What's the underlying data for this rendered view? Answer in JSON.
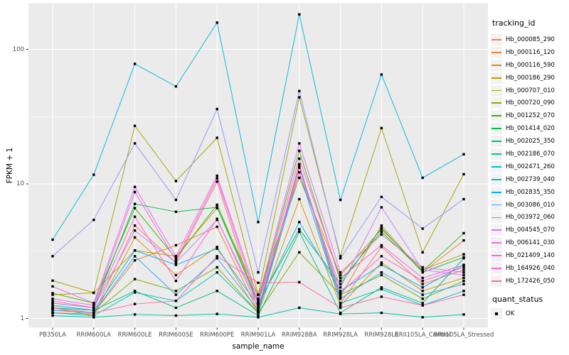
{
  "chart_data": {
    "type": "line",
    "title": "",
    "xlabel": "sample_name",
    "ylabel": "FPKM + 1",
    "y_scale": "log10",
    "y_ticks": [
      1,
      10,
      100
    ],
    "y_tick_labels": [
      "1",
      "10",
      "100"
    ],
    "y_minor_ticks": [
      3.162,
      31.623
    ],
    "ylim": [
      0.87,
      216
    ],
    "grid": true,
    "legend_position": "right",
    "panel_bg": "#EBEBEB",
    "grid_color": "#FFFFFF",
    "tick_color": "#333333",
    "axis_text_color": "#4D4D4D",
    "point_color": "#000000",
    "categories": [
      "PB350LA",
      "RRIM600LA",
      "RRIM600LE",
      "RRIM600SE",
      "RRIM600PE",
      "RRIM901LA",
      "RRIM928BA",
      "RRIM928LA",
      "RRIM928LE",
      "RRII105LA_Control",
      "RRII105LA_Stressed"
    ],
    "series": [
      {
        "name": "Hb_000085_290",
        "color": "#F8766D",
        "values": [
          1.1,
          1.08,
          4.9,
          2.6,
          10.4,
          1.15,
          14.0,
          1.3,
          3.4,
          1.8,
          2.3
        ]
      },
      {
        "name": "Hb_000116_120",
        "color": "#EA8331",
        "values": [
          1.15,
          1.1,
          2.7,
          3.5,
          4.8,
          1.12,
          13.2,
          1.45,
          4.9,
          2.2,
          3.8
        ]
      },
      {
        "name": "Hb_000116_590",
        "color": "#D89000",
        "values": [
          1.2,
          1.05,
          4.0,
          2.1,
          3.4,
          1.1,
          7.7,
          1.25,
          2.6,
          1.6,
          2.0
        ]
      },
      {
        "name": "Hb_000186_290",
        "color": "#C09B00",
        "values": [
          1.5,
          1.55,
          3.2,
          2.9,
          6.6,
          1.5,
          11.1,
          2.1,
          4.6,
          2.3,
          3.0
        ]
      },
      {
        "name": "Hb_000707_010",
        "color": "#A3A500",
        "values": [
          1.91,
          1.55,
          27.0,
          10.5,
          22.0,
          1.5,
          44.0,
          2.9,
          26.0,
          3.1,
          11.8
        ]
      },
      {
        "name": "Hb_000720_090",
        "color": "#7CAE00",
        "values": [
          1.2,
          1.1,
          1.96,
          1.6,
          2.4,
          1.1,
          3.1,
          1.5,
          2.1,
          1.4,
          1.9
        ]
      },
      {
        "name": "Hb_001252_070",
        "color": "#39B600",
        "values": [
          1.54,
          1.3,
          6.6,
          2.8,
          7.0,
          1.35,
          17.6,
          1.9,
          4.4,
          2.25,
          4.3
        ]
      },
      {
        "name": "Hb_001414_020",
        "color": "#00BB4E",
        "values": [
          1.3,
          1.2,
          7.1,
          6.2,
          6.7,
          1.3,
          4.6,
          1.8,
          4.7,
          2.2,
          2.85
        ]
      },
      {
        "name": "Hb_002025_350",
        "color": "#00BF7D",
        "values": [
          1.25,
          1.15,
          1.6,
          1.2,
          1.6,
          1.05,
          4.4,
          1.1,
          1.7,
          1.3,
          2.8
        ]
      },
      {
        "name": "Hb_002186_070",
        "color": "#00C1A3",
        "values": [
          1.05,
          1.02,
          1.07,
          1.05,
          1.08,
          1.02,
          1.2,
          1.08,
          1.1,
          1.02,
          1.07
        ]
      },
      {
        "name": "Hb_002471_260",
        "color": "#00BFC4",
        "values": [
          1.1,
          1.05,
          1.56,
          1.35,
          2.2,
          1.1,
          12.2,
          1.3,
          1.65,
          1.25,
          1.6
        ]
      },
      {
        "name": "Hb_002739_040",
        "color": "#00BAE0",
        "values": [
          3.85,
          11.7,
          78.0,
          53.0,
          158.0,
          5.2,
          182.0,
          7.6,
          65.0,
          11.1,
          16.6
        ]
      },
      {
        "name": "Hb_002835_350",
        "color": "#00B0F6",
        "values": [
          1.2,
          1.15,
          3.2,
          2.5,
          3.3,
          1.25,
          5.2,
          1.6,
          2.5,
          1.7,
          2.5
        ]
      },
      {
        "name": "Hb_003086_010",
        "color": "#35A2FF",
        "values": [
          1.15,
          1.1,
          2.9,
          1.5,
          2.8,
          1.15,
          13.5,
          1.4,
          2.2,
          1.5,
          1.8
        ]
      },
      {
        "name": "Hb_003972_060",
        "color": "#9590FF",
        "values": [
          2.9,
          5.4,
          20.0,
          7.6,
          36.0,
          2.2,
          49.0,
          2.8,
          8.0,
          4.65,
          7.7
        ]
      },
      {
        "name": "Hb_004545_070",
        "color": "#C77CFF",
        "values": [
          1.3,
          1.2,
          4.5,
          2.6,
          5.4,
          1.3,
          12.2,
          1.7,
          6.7,
          2.3,
          2.1
        ]
      },
      {
        "name": "Hb_006141_030",
        "color": "#E76BF3",
        "values": [
          1.73,
          1.3,
          9.5,
          2.9,
          11.5,
          1.4,
          20.0,
          2.2,
          4.2,
          2.4,
          2.2
        ]
      },
      {
        "name": "Hb_021409_140",
        "color": "#FA62DB",
        "values": [
          1.4,
          1.25,
          8.7,
          2.7,
          11.0,
          1.3,
          15.4,
          2.0,
          3.5,
          2.0,
          2.5
        ]
      },
      {
        "name": "Hb_164926_040",
        "color": "#FF61C9",
        "values": [
          1.35,
          1.2,
          5.7,
          1.9,
          5.5,
          1.2,
          13.5,
          1.55,
          2.9,
          1.9,
          2.4
        ]
      },
      {
        "name": "Hb_172426_050",
        "color": "#FF67A4",
        "values": [
          1.2,
          1.1,
          1.28,
          1.35,
          2.9,
          1.84,
          1.86,
          1.2,
          1.45,
          1.25,
          1.5
        ]
      }
    ],
    "legend": {
      "color_title": "tracking_id",
      "shape_title": "quant_status",
      "shape_items": [
        {
          "label": "OK",
          "marker": "black-square"
        }
      ]
    }
  }
}
